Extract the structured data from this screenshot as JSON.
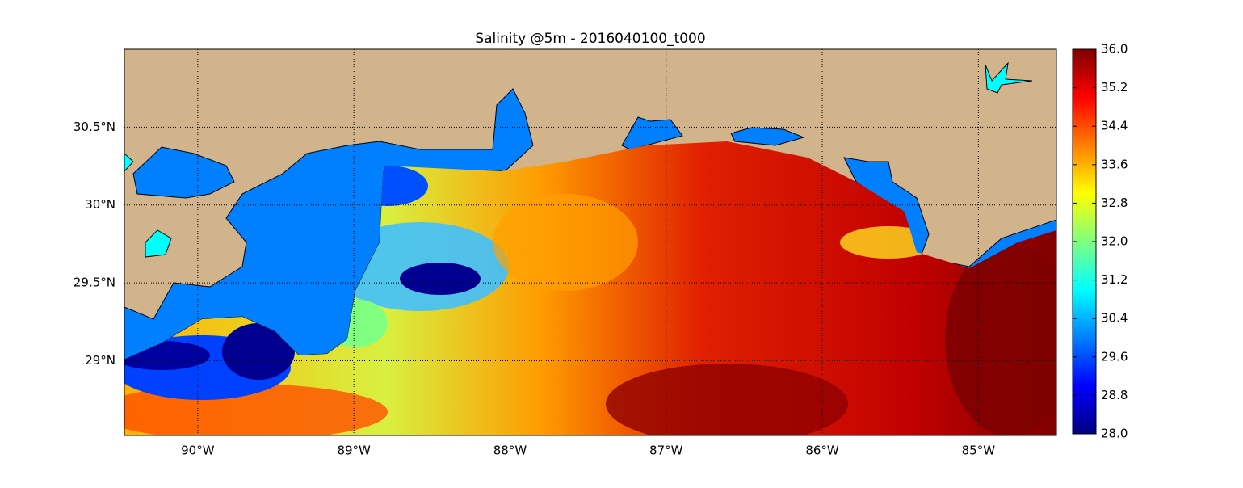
{
  "title": "Salinity @5m - 2016040100_t000",
  "map": {
    "xlim": [
      -90.47,
      -84.5
    ],
    "ylim": [
      28.52,
      31.0
    ],
    "xticks": [
      {
        "value": -90,
        "label": "90°W"
      },
      {
        "value": -89,
        "label": "89°W"
      },
      {
        "value": -88,
        "label": "88°W"
      },
      {
        "value": -87,
        "label": "87°W"
      },
      {
        "value": -86,
        "label": "86°W"
      },
      {
        "value": -85,
        "label": "85°W"
      }
    ],
    "yticks": [
      {
        "value": 29,
        "label": "29°N"
      },
      {
        "value": 29.5,
        "label": "29.5°N"
      },
      {
        "value": 30,
        "label": "30°N"
      },
      {
        "value": 30.5,
        "label": "30.5°N"
      }
    ],
    "grid": true
  },
  "colorbar": {
    "lim": [
      28,
      36
    ],
    "ticks": [
      {
        "value": 28,
        "label": "28.0"
      },
      28.8,
      29.6,
      30.4,
      31.2,
      {
        "value": 32,
        "label": "32.0"
      },
      32.8,
      33.6,
      34.4,
      35.2,
      {
        "value": 36,
        "label": "36.0"
      }
    ]
  }
}
